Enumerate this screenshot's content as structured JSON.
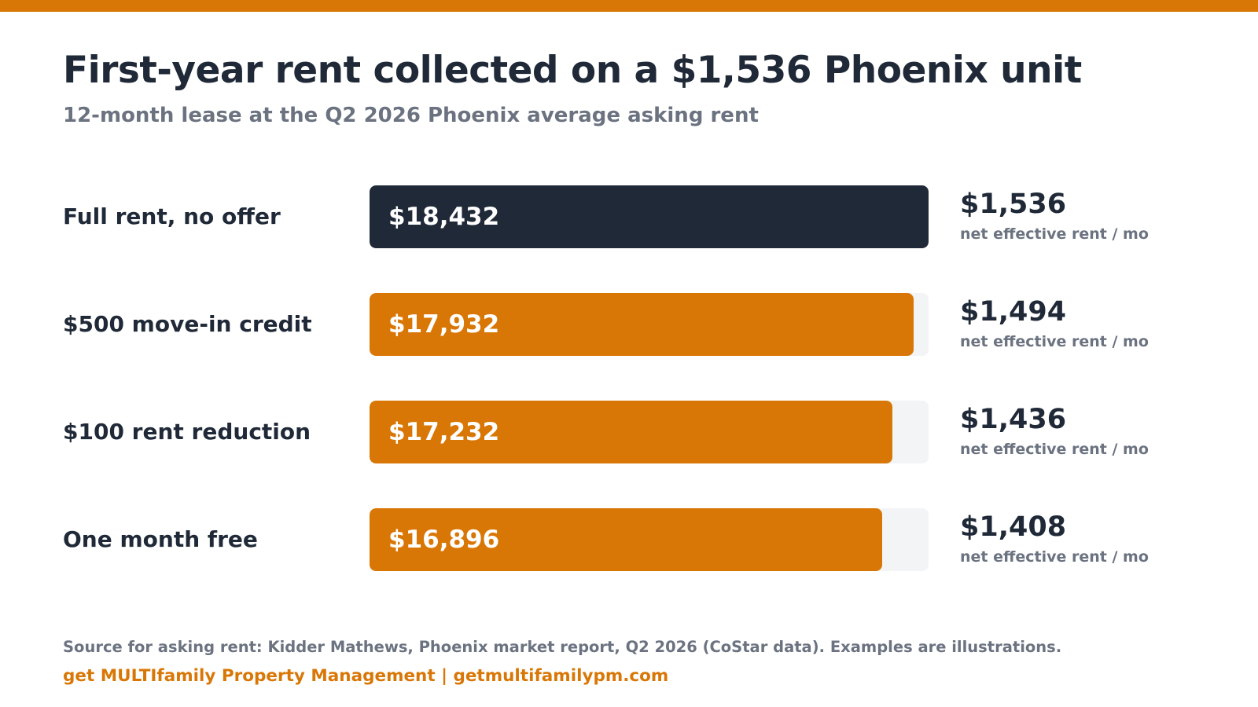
{
  "colors": {
    "accent": "#d97706",
    "dark": "#1f2937",
    "muted": "#6b7280",
    "track": "#f3f4f6",
    "bar_text": "#ffffff"
  },
  "chart_data": {
    "type": "bar",
    "orientation": "horizontal",
    "title": "First-year rent collected on a $1,536 Phoenix unit",
    "subtitle": "12-month lease at the Q2 2026 Phoenix average asking rent",
    "xlim": [
      0,
      18432
    ],
    "grid": false,
    "categories": [
      "Full rent, no offer",
      "$500 move-in credit",
      "$100 rent reduction",
      "One month free"
    ],
    "values": [
      18432,
      17932,
      17232,
      16896
    ],
    "value_labels": [
      "$18,432",
      "$17,932",
      "$17,232",
      "$16,896"
    ],
    "bar_colors": [
      "#1f2937",
      "#d97706",
      "#d97706",
      "#d97706"
    ],
    "monthly_values": [
      1536,
      1494,
      1436,
      1408
    ],
    "monthly_labels": [
      "$1,536",
      "$1,494",
      "$1,436",
      "$1,408"
    ],
    "monthly_note": "net effective rent / mo"
  },
  "footer": {
    "source": "Source for asking rent: Kidder Mathews, Phoenix market report, Q2 2026 (CoStar data). Examples are illustrations.",
    "brand": "get MULTIfamily Property Management  |  getmultifamilypm.com"
  }
}
